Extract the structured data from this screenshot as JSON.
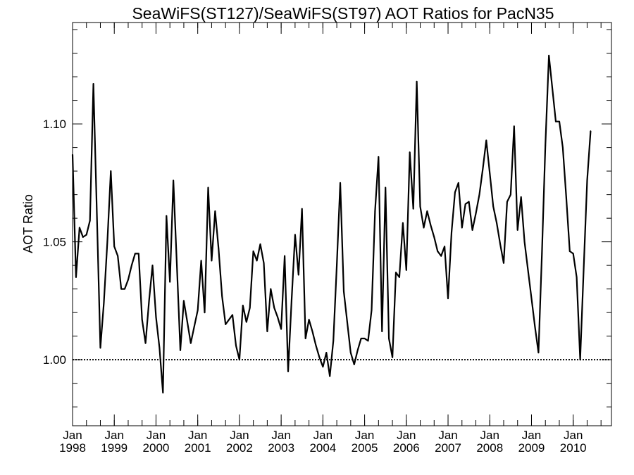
{
  "chart_data": {
    "type": "line",
    "title": "SeaWiFS(ST127)/SeaWiFS(ST97)  AOT Ratios for PacN35",
    "xlabel": "",
    "ylabel": "AOT Ratio",
    "x_range": [
      "1998-01",
      "2010-12"
    ],
    "ylim": [
      0.972,
      1.143
    ],
    "yticks": [
      1.0,
      1.05,
      1.1
    ],
    "ytick_labels": [
      "1.00",
      "1.05",
      "1.10"
    ],
    "xticks": [
      {
        "month": "Jan",
        "year": "1998",
        "date": "1998-01"
      },
      {
        "month": "Jan",
        "year": "1999",
        "date": "1999-01"
      },
      {
        "month": "Jan",
        "year": "2000",
        "date": "2000-01"
      },
      {
        "month": "Jan",
        "year": "2001",
        "date": "2001-01"
      },
      {
        "month": "Jan",
        "year": "2002",
        "date": "2002-01"
      },
      {
        "month": "Jan",
        "year": "2003",
        "date": "2003-01"
      },
      {
        "month": "Jan",
        "year": "2004",
        "date": "2004-01"
      },
      {
        "month": "Jan",
        "year": "2005",
        "date": "2005-01"
      },
      {
        "month": "Jan",
        "year": "2006",
        "date": "2006-01"
      },
      {
        "month": "Jan",
        "year": "2007",
        "date": "2007-01"
      },
      {
        "month": "Jan",
        "year": "2008",
        "date": "2008-01"
      },
      {
        "month": "Jan",
        "year": "2009",
        "date": "2009-01"
      },
      {
        "month": "Jan",
        "year": "2010",
        "date": "2010-01"
      }
    ],
    "reference_line": {
      "y": 1.0,
      "style": "dotted"
    },
    "grid": false,
    "series": [
      {
        "color": "#000000",
        "start": "1998-01",
        "frequency": "monthly",
        "values": [
          1.087,
          1.035,
          1.056,
          1.052,
          1.053,
          1.059,
          1.117,
          1.062,
          1.005,
          1.024,
          1.05,
          1.08,
          1.048,
          1.044,
          1.03,
          1.03,
          1.034,
          1.04,
          1.045,
          1.045,
          1.017,
          1.007,
          1.025,
          1.04,
          1.018,
          1.005,
          0.986,
          1.061,
          1.033,
          1.076,
          1.04,
          1.004,
          1.025,
          1.016,
          1.007,
          1.014,
          1.021,
          1.042,
          1.02,
          1.073,
          1.042,
          1.063,
          1.047,
          1.027,
          1.015,
          1.017,
          1.019,
          1.006,
          1.0,
          1.023,
          1.016,
          1.022,
          1.046,
          1.042,
          1.049,
          1.041,
          1.012,
          1.03,
          1.022,
          1.018,
          1.013,
          1.044,
          0.995,
          1.025,
          1.053,
          1.036,
          1.064,
          1.009,
          1.017,
          1.012,
          1.006,
          1.001,
          0.997,
          1.003,
          0.993,
          1.008,
          1.04,
          1.075,
          1.029,
          1.016,
          1.003,
          0.998,
          1.004,
          1.009,
          1.009,
          1.008,
          1.021,
          1.063,
          1.086,
          1.012,
          1.073,
          1.009,
          1.001,
          1.037,
          1.035,
          1.058,
          1.038,
          1.088,
          1.064,
          1.118,
          1.065,
          1.056,
          1.063,
          1.057,
          1.052,
          1.046,
          1.044,
          1.048,
          1.026,
          1.054,
          1.071,
          1.075,
          1.056,
          1.066,
          1.067,
          1.055,
          1.062,
          1.07,
          1.081,
          1.093,
          1.079,
          1.065,
          1.058,
          1.049,
          1.041,
          1.067,
          1.07,
          1.099,
          1.055,
          1.069,
          1.05,
          1.038,
          1.026,
          1.014,
          1.003,
          1.045,
          1.091,
          1.129,
          1.115,
          1.101,
          1.101,
          1.09,
          1.069,
          1.046,
          1.045,
          1.035,
          1.0,
          1.038,
          1.076,
          1.097
        ]
      }
    ]
  }
}
